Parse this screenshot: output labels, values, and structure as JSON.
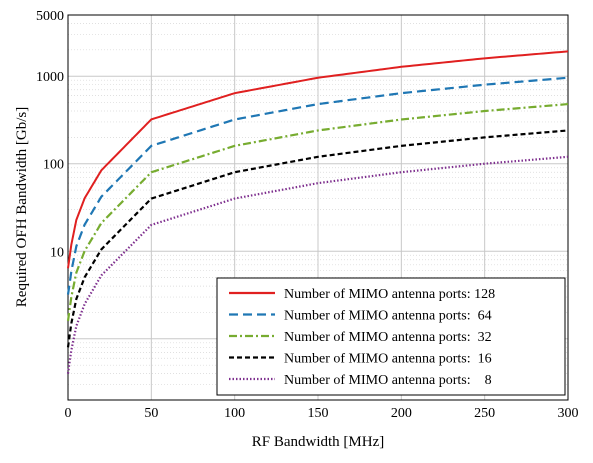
{
  "chart_data": {
    "type": "line",
    "xlabel": "RF Bandwidth [MHz]",
    "ylabel": "Required OFH Bandwidth [Gb/s]",
    "xlim": [
      0,
      300
    ],
    "ylim": [
      0.2,
      5000
    ],
    "yscale": "log",
    "grid": true,
    "legend_position": "bottom-right",
    "x_ticks": [
      0,
      50,
      100,
      150,
      200,
      250,
      300
    ],
    "x_tick_labels": [
      "0",
      "50",
      "100",
      "150",
      "200",
      "250",
      "300"
    ],
    "y_ticks": [
      10,
      100,
      1000,
      5000
    ],
    "y_tick_labels": [
      "10",
      "100",
      "1000",
      "5000"
    ],
    "x": [
      0,
      1,
      2,
      5,
      10,
      20,
      50,
      100,
      150,
      200,
      250,
      300
    ],
    "series": [
      {
        "name": "Number of MIMO antenna ports: 128",
        "color": "#e02020",
        "dash": "solid",
        "values": [
          6.4,
          8.7,
          11.9,
          22.8,
          40.4,
          84.1,
          321,
          640,
          960,
          1280,
          1600,
          1920
        ]
      },
      {
        "name": "Number of MIMO antenna ports:  64",
        "color": "#1f77b4",
        "dash": "dash",
        "values": [
          3.2,
          4.3,
          5.9,
          11.4,
          20.2,
          42.0,
          160,
          320,
          480,
          640,
          800,
          960
        ]
      },
      {
        "name": "Number of MIMO antenna ports:  32",
        "color": "#77ac30",
        "dash": "dashdot",
        "values": [
          1.6,
          2.2,
          3.0,
          5.7,
          10.1,
          21.0,
          80,
          160,
          240,
          320,
          400,
          480
        ]
      },
      {
        "name": "Number of MIMO antenna ports:  16",
        "color": "#000000",
        "dash": "shortdash",
        "values": [
          0.8,
          1.1,
          1.5,
          2.85,
          5.05,
          10.5,
          40,
          80,
          120,
          160,
          200,
          240
        ]
      },
      {
        "name": "Number of MIMO antenna ports:    8",
        "color": "#7e2f8e",
        "dash": "dot",
        "values": [
          0.4,
          0.55,
          0.74,
          1.4,
          2.5,
          5.3,
          20,
          40,
          60,
          80,
          100,
          120
        ]
      }
    ]
  }
}
